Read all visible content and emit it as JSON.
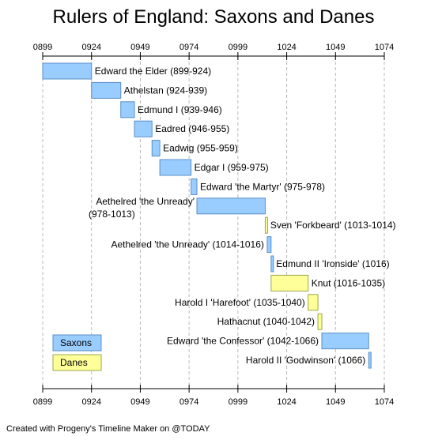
{
  "chart_data": {
    "type": "bar",
    "orientation": "horizontal-timeline",
    "title": "Rulers of England: Saxons and Danes",
    "xlim": [
      899,
      1074
    ],
    "x_ticks": [
      "0899",
      "0924",
      "0949",
      "0974",
      "0999",
      "1024",
      "1049",
      "1074"
    ],
    "grid": true,
    "legend_placement": "bottom-left",
    "legend": [
      {
        "name": "Saxons",
        "color": "#99ccff"
      },
      {
        "name": "Danes",
        "color": "#ffff99"
      }
    ],
    "series": [
      {
        "label": "Edward the Elder (899-924)",
        "start": 899,
        "end": 924,
        "group": "Saxons"
      },
      {
        "label": "Athelstan (924-939)",
        "start": 924,
        "end": 939,
        "group": "Saxons"
      },
      {
        "label": "Edmund I (939-946)",
        "start": 939,
        "end": 946,
        "group": "Saxons"
      },
      {
        "label": "Eadred (946-955)",
        "start": 946,
        "end": 955,
        "group": "Saxons"
      },
      {
        "label": "Eadwig (955-959)",
        "start": 955,
        "end": 959,
        "group": "Saxons"
      },
      {
        "label": "Edgar I (959-975)",
        "start": 959,
        "end": 975,
        "group": "Saxons"
      },
      {
        "label": "Edward 'the Martyr' (975-978)",
        "start": 975,
        "end": 978,
        "group": "Saxons"
      },
      {
        "label": "Aethelred 'the Unready' (978-1013)",
        "start": 978,
        "end": 1013,
        "group": "Saxons",
        "label_lines": [
          "Aethelred 'the Unready'",
          "(978-1013)"
        ]
      },
      {
        "label": "Sven 'Forkbeard' (1013-1014)",
        "start": 1013,
        "end": 1014,
        "group": "Danes"
      },
      {
        "label": "Aethelred 'the Unready' (1014-1016)",
        "start": 1014,
        "end": 1016,
        "group": "Saxons"
      },
      {
        "label": "Edmund II 'Ironside' (1016)",
        "start": 1016,
        "end": 1017,
        "group": "Saxons"
      },
      {
        "label": "Knut (1016-1035)",
        "start": 1016,
        "end": 1035,
        "group": "Danes"
      },
      {
        "label": "Harold I 'Harefoot' (1035-1040)",
        "start": 1035,
        "end": 1040,
        "group": "Danes"
      },
      {
        "label": "Hathacnut (1040-1042)",
        "start": 1040,
        "end": 1042,
        "group": "Danes"
      },
      {
        "label": "Edward 'the Confessor' (1042-1066)",
        "start": 1042,
        "end": 1066,
        "group": "Saxons"
      },
      {
        "label": "Harold II 'Godwinson' (1066)",
        "start": 1066,
        "end": 1067,
        "group": "Saxons"
      }
    ],
    "footer": "Created with Progeny's Timeline Maker on @TODAY"
  },
  "colors": {
    "saxon_fill": "#99ccff",
    "saxon_stroke": "#5b8fc7",
    "dane_fill": "#ffff99",
    "dane_stroke": "#9aa84a"
  }
}
